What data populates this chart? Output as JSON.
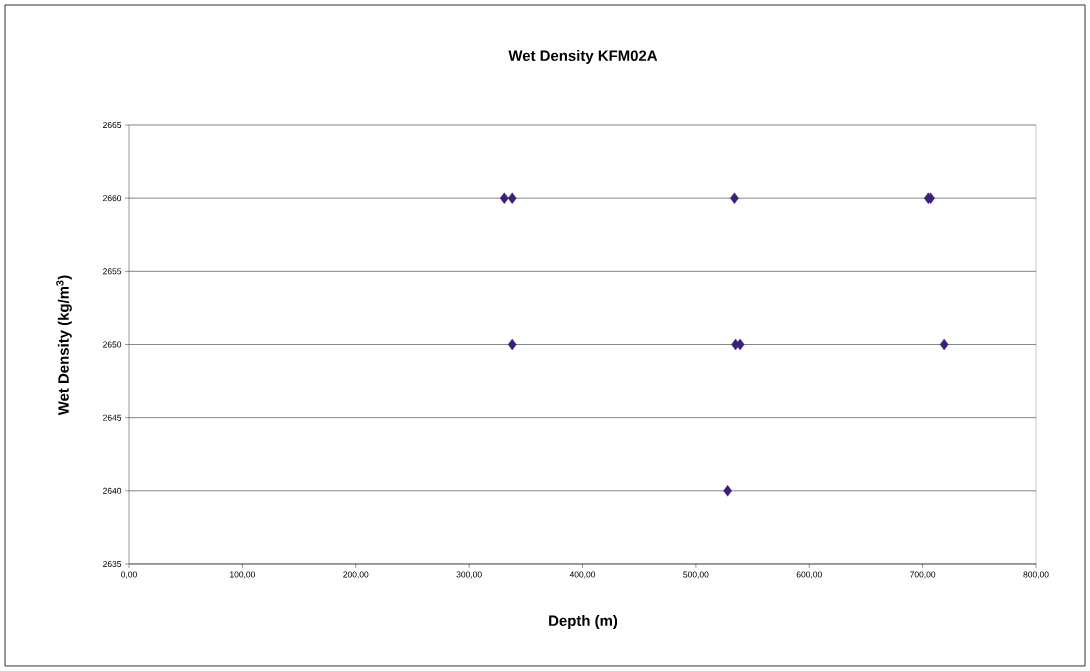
{
  "chart_data": {
    "type": "scatter",
    "title": "Wet Density KFM02A",
    "xlabel": "Depth (m)",
    "ylabel": "Wet Density (kg/m$^{3}$)",
    "x": [
      331,
      338,
      534,
      705,
      707,
      338,
      535,
      539,
      719,
      528
    ],
    "values": [
      2660,
      2660,
      2660,
      2660,
      2660,
      2650,
      2650,
      2650,
      2650,
      2640
    ],
    "color": "#3b1f7a",
    "marker": "diamond",
    "grid": "y",
    "xlim": [
      0,
      800
    ],
    "ylim": [
      2635,
      2665
    ],
    "xticks": [
      {
        "value": 0,
        "label": "0,00"
      },
      {
        "value": 100,
        "label": "100,00"
      },
      {
        "value": 200,
        "label": "200,00"
      },
      {
        "value": 300,
        "label": "300,00"
      },
      {
        "value": 400,
        "label": "400,00"
      },
      {
        "value": 500,
        "label": "500,00"
      },
      {
        "value": 600,
        "label": "600,00"
      },
      {
        "value": 700,
        "label": "700,00"
      },
      {
        "value": 800,
        "label": "800,00"
      }
    ],
    "yticks": [
      2635,
      2640,
      2645,
      2650,
      2655,
      2660,
      2665
    ]
  }
}
